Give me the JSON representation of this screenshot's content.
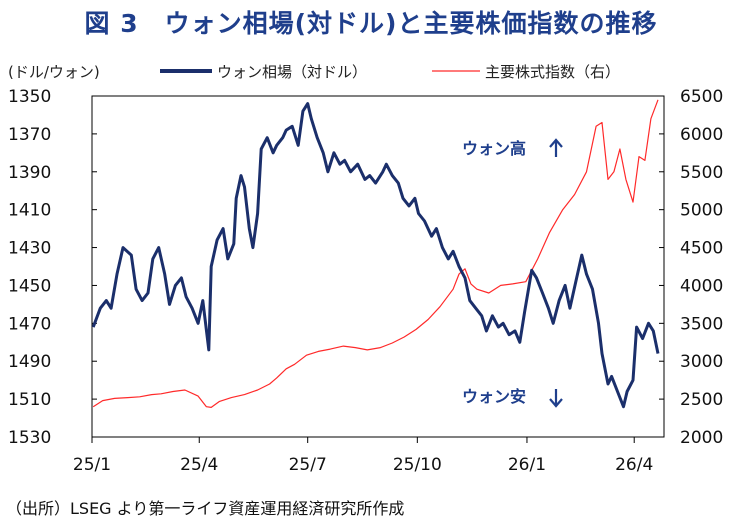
{
  "title": "図 3　ウォン相場(対ドル)と主要株価指数の推移",
  "source": "（出所）LSEG より第一ライフ資産運用経済研究所作成",
  "colors": {
    "won": "#1b2f6b",
    "index": "#ff2a2a",
    "title": "#1f3f8c"
  },
  "chart_data": {
    "type": "line",
    "y_left_unit": "(ドル/ウォン)",
    "x_ticks": [
      "25/1",
      "25/4",
      "25/7",
      "25/10",
      "26/1",
      "26/4"
    ],
    "y_left": {
      "ticks": [
        1350,
        1370,
        1390,
        1410,
        1430,
        1450,
        1470,
        1490,
        1510,
        1530
      ],
      "range": [
        1350,
        1530
      ],
      "inverted": true
    },
    "y_right": {
      "ticks": [
        6500,
        6000,
        5500,
        5000,
        4500,
        4000,
        3500,
        3000,
        2500,
        2000
      ],
      "range": [
        2000,
        6500
      ]
    },
    "annotations": {
      "up": "ウォン高",
      "down": "ウォン安"
    },
    "series": [
      {
        "name": "ウォン相場（対ドル）",
        "axis": "left",
        "points": [
          [
            "2025-01-02",
            1472
          ],
          [
            "2025-01-08",
            1462
          ],
          [
            "2025-01-13",
            1458
          ],
          [
            "2025-01-17",
            1462
          ],
          [
            "2025-01-22",
            1444
          ],
          [
            "2025-01-27",
            1430
          ],
          [
            "2025-02-03",
            1434
          ],
          [
            "2025-02-07",
            1452
          ],
          [
            "2025-02-12",
            1458
          ],
          [
            "2025-02-17",
            1454
          ],
          [
            "2025-02-21",
            1436
          ],
          [
            "2025-02-26",
            1430
          ],
          [
            "2025-03-03",
            1444
          ],
          [
            "2025-03-07",
            1460
          ],
          [
            "2025-03-12",
            1450
          ],
          [
            "2025-03-17",
            1446
          ],
          [
            "2025-03-21",
            1456
          ],
          [
            "2025-03-26",
            1462
          ],
          [
            "2025-03-31",
            1470
          ],
          [
            "2025-04-04",
            1458
          ],
          [
            "2025-04-09",
            1484
          ],
          [
            "2025-04-11",
            1440
          ],
          [
            "2025-04-16",
            1426
          ],
          [
            "2025-04-21",
            1420
          ],
          [
            "2025-04-25",
            1436
          ],
          [
            "2025-04-30",
            1428
          ],
          [
            "2025-05-02",
            1404
          ],
          [
            "2025-05-06",
            1392
          ],
          [
            "2025-05-09",
            1398
          ],
          [
            "2025-05-13",
            1420
          ],
          [
            "2025-05-16",
            1430
          ],
          [
            "2025-05-20",
            1412
          ],
          [
            "2025-05-23",
            1378
          ],
          [
            "2025-05-28",
            1372
          ],
          [
            "2025-06-02",
            1380
          ],
          [
            "2025-06-05",
            1376
          ],
          [
            "2025-06-10",
            1372
          ],
          [
            "2025-06-13",
            1368
          ],
          [
            "2025-06-18",
            1366
          ],
          [
            "2025-06-23",
            1376
          ],
          [
            "2025-06-27",
            1358
          ],
          [
            "2025-07-01",
            1354
          ],
          [
            "2025-07-04",
            1362
          ],
          [
            "2025-07-09",
            1372
          ],
          [
            "2025-07-14",
            1380
          ],
          [
            "2025-07-18",
            1390
          ],
          [
            "2025-07-23",
            1380
          ],
          [
            "2025-07-28",
            1386
          ],
          [
            "2025-08-01",
            1384
          ],
          [
            "2025-08-06",
            1390
          ],
          [
            "2025-08-12",
            1386
          ],
          [
            "2025-08-18",
            1394
          ],
          [
            "2025-08-22",
            1392
          ],
          [
            "2025-08-27",
            1396
          ],
          [
            "2025-09-02",
            1390
          ],
          [
            "2025-09-05",
            1386
          ],
          [
            "2025-09-10",
            1392
          ],
          [
            "2025-09-15",
            1396
          ],
          [
            "2025-09-19",
            1404
          ],
          [
            "2025-09-24",
            1408
          ],
          [
            "2025-09-29",
            1404
          ],
          [
            "2025-10-02",
            1412
          ],
          [
            "2025-10-07",
            1416
          ],
          [
            "2025-10-13",
            1424
          ],
          [
            "2025-10-17",
            1420
          ],
          [
            "2025-10-22",
            1430
          ],
          [
            "2025-10-27",
            1436
          ],
          [
            "2025-10-31",
            1432
          ],
          [
            "2025-11-05",
            1440
          ],
          [
            "2025-11-10",
            1446
          ],
          [
            "2025-11-14",
            1458
          ],
          [
            "2025-11-19",
            1462
          ],
          [
            "2025-11-24",
            1466
          ],
          [
            "2025-11-28",
            1474
          ],
          [
            "2025-12-03",
            1466
          ],
          [
            "2025-12-08",
            1472
          ],
          [
            "2025-12-12",
            1470
          ],
          [
            "2025-12-17",
            1476
          ],
          [
            "2025-12-22",
            1474
          ],
          [
            "2025-12-26",
            1480
          ],
          [
            "2025-12-30",
            1464
          ],
          [
            "2026-01-05",
            1442
          ],
          [
            "2026-01-09",
            1446
          ],
          [
            "2026-01-14",
            1454
          ],
          [
            "2026-01-19",
            1462
          ],
          [
            "2026-01-23",
            1470
          ],
          [
            "2026-01-28",
            1458
          ],
          [
            "2026-02-02",
            1450
          ],
          [
            "2026-02-06",
            1462
          ],
          [
            "2026-02-11",
            1448
          ],
          [
            "2026-02-16",
            1434
          ],
          [
            "2026-02-20",
            1444
          ],
          [
            "2026-02-25",
            1452
          ],
          [
            "2026-03-02",
            1470
          ],
          [
            "2026-03-05",
            1486
          ],
          [
            "2026-03-10",
            1502
          ],
          [
            "2026-03-13",
            1498
          ],
          [
            "2026-03-18",
            1506
          ],
          [
            "2026-03-23",
            1514
          ],
          [
            "2026-03-26",
            1506
          ],
          [
            "2026-03-31",
            1500
          ],
          [
            "2026-04-03",
            1472
          ],
          [
            "2026-04-08",
            1478
          ],
          [
            "2026-04-13",
            1470
          ],
          [
            "2026-04-17",
            1474
          ],
          [
            "2026-04-21",
            1486
          ]
        ]
      },
      {
        "name": "主要株式指数（右）",
        "axis": "right",
        "points": [
          [
            "2025-01-02",
            2400
          ],
          [
            "2025-01-10",
            2480
          ],
          [
            "2025-01-20",
            2510
          ],
          [
            "2025-01-31",
            2520
          ],
          [
            "2025-02-10",
            2530
          ],
          [
            "2025-02-20",
            2560
          ],
          [
            "2025-02-28",
            2570
          ],
          [
            "2025-03-10",
            2600
          ],
          [
            "2025-03-20",
            2620
          ],
          [
            "2025-03-31",
            2540
          ],
          [
            "2025-04-07",
            2400
          ],
          [
            "2025-04-11",
            2390
          ],
          [
            "2025-04-18",
            2470
          ],
          [
            "2025-04-28",
            2520
          ],
          [
            "2025-05-09",
            2560
          ],
          [
            "2025-05-20",
            2620
          ],
          [
            "2025-05-30",
            2700
          ],
          [
            "2025-06-05",
            2780
          ],
          [
            "2025-06-13",
            2900
          ],
          [
            "2025-06-20",
            2960
          ],
          [
            "2025-06-30",
            3080
          ],
          [
            "2025-07-10",
            3130
          ],
          [
            "2025-07-20",
            3160
          ],
          [
            "2025-07-31",
            3200
          ],
          [
            "2025-08-10",
            3180
          ],
          [
            "2025-08-20",
            3150
          ],
          [
            "2025-08-31",
            3180
          ],
          [
            "2025-09-10",
            3240
          ],
          [
            "2025-09-20",
            3320
          ],
          [
            "2025-09-30",
            3420
          ],
          [
            "2025-10-10",
            3550
          ],
          [
            "2025-10-20",
            3720
          ],
          [
            "2025-10-31",
            3950
          ],
          [
            "2025-11-05",
            4150
          ],
          [
            "2025-11-10",
            4220
          ],
          [
            "2025-11-15",
            4020
          ],
          [
            "2025-11-20",
            3950
          ],
          [
            "2025-11-30",
            3900
          ],
          [
            "2025-12-10",
            4000
          ],
          [
            "2025-12-20",
            4020
          ],
          [
            "2025-12-31",
            4050
          ],
          [
            "2026-01-10",
            4350
          ],
          [
            "2026-01-20",
            4700
          ],
          [
            "2026-01-31",
            5000
          ],
          [
            "2026-02-10",
            5200
          ],
          [
            "2026-02-20",
            5500
          ],
          [
            "2026-02-28",
            6100
          ],
          [
            "2026-03-05",
            6150
          ],
          [
            "2026-03-10",
            5400
          ],
          [
            "2026-03-15",
            5500
          ],
          [
            "2026-03-20",
            5800
          ],
          [
            "2026-03-25",
            5400
          ],
          [
            "2026-03-31",
            5100
          ],
          [
            "2026-04-05",
            5700
          ],
          [
            "2026-04-10",
            5650
          ],
          [
            "2026-04-15",
            6200
          ],
          [
            "2026-04-21",
            6450
          ]
        ]
      }
    ]
  }
}
